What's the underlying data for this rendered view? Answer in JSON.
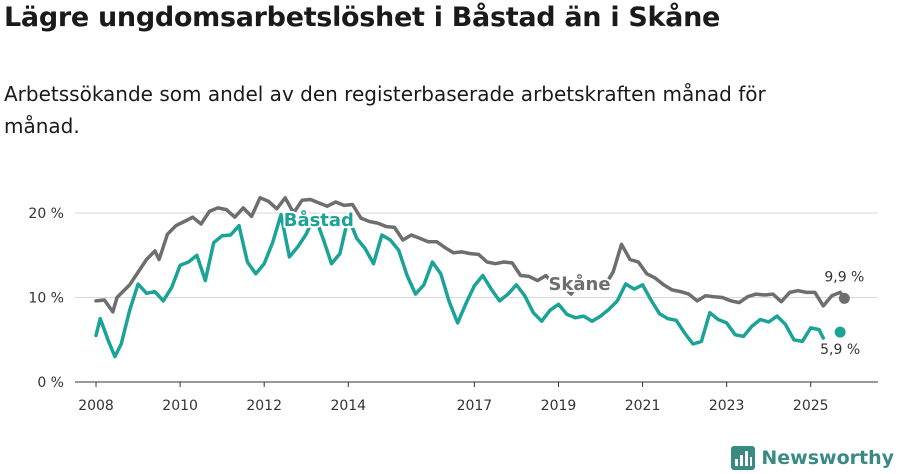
{
  "title": "Lägre ungdomsarbetslöshet i Båstad än i Skåne",
  "subtitle": "Arbetssökande som andel av den registerbaserade arbetskraften månad för månad.",
  "brand": {
    "name": "Newsworthy",
    "icon": "newsworthy-logo-icon"
  },
  "colors": {
    "bastad": "#1aa396",
    "skane": "#6e6e6e",
    "grid": "#d9d9d9",
    "axis": "#333333",
    "brand": "#3a8a84"
  },
  "chart_data": {
    "type": "line",
    "title": "Lägre ungdomsarbetslöshet i Båstad än i Skåne",
    "xlabel": "",
    "ylabel": "",
    "xlim": [
      2007.5,
      2026.6
    ],
    "ylim": [
      0,
      20
    ],
    "y_ticks": [
      0,
      10,
      20
    ],
    "y_tick_labels": [
      "0 %",
      "10 %",
      "20 %"
    ],
    "x_ticks": [
      2008,
      2010,
      2012,
      2014,
      2017,
      2019,
      2021,
      2023,
      2025
    ],
    "x_tick_labels": [
      "2008",
      "2010",
      "2012",
      "2014",
      "2017",
      "2019",
      "2021",
      "2023",
      "2025"
    ],
    "grid": true,
    "series": [
      {
        "name": "Skåne",
        "label": "Skåne",
        "color": "#6e6e6e",
        "end_label": "9,9 %",
        "points": [
          [
            2008.0,
            9.6
          ],
          [
            2008.2,
            9.7
          ],
          [
            2008.4,
            8.3
          ],
          [
            2008.5,
            10.0
          ],
          [
            2008.8,
            11.5
          ],
          [
            2009.0,
            13.0
          ],
          [
            2009.2,
            14.5
          ],
          [
            2009.4,
            15.5
          ],
          [
            2009.5,
            14.5
          ],
          [
            2009.7,
            17.5
          ],
          [
            2009.9,
            18.5
          ],
          [
            2010.1,
            19.0
          ],
          [
            2010.3,
            19.5
          ],
          [
            2010.5,
            18.7
          ],
          [
            2010.7,
            20.2
          ],
          [
            2010.9,
            20.6
          ],
          [
            2011.1,
            20.4
          ],
          [
            2011.3,
            19.5
          ],
          [
            2011.5,
            20.6
          ],
          [
            2011.7,
            19.6
          ],
          [
            2011.9,
            21.8
          ],
          [
            2012.1,
            21.4
          ],
          [
            2012.3,
            20.5
          ],
          [
            2012.5,
            21.8
          ],
          [
            2012.7,
            20.0
          ],
          [
            2012.9,
            21.5
          ],
          [
            2013.1,
            21.6
          ],
          [
            2013.3,
            21.2
          ],
          [
            2013.5,
            20.8
          ],
          [
            2013.7,
            21.3
          ],
          [
            2013.9,
            20.9
          ],
          [
            2014.1,
            21.0
          ],
          [
            2014.3,
            19.4
          ],
          [
            2014.5,
            19.0
          ],
          [
            2014.7,
            18.8
          ],
          [
            2014.9,
            18.4
          ],
          [
            2015.1,
            18.3
          ],
          [
            2015.3,
            16.8
          ],
          [
            2015.5,
            17.4
          ],
          [
            2015.7,
            17.0
          ],
          [
            2015.9,
            16.6
          ],
          [
            2016.1,
            16.6
          ],
          [
            2016.3,
            15.9
          ],
          [
            2016.5,
            15.3
          ],
          [
            2016.7,
            15.4
          ],
          [
            2016.9,
            15.2
          ],
          [
            2017.1,
            15.1
          ],
          [
            2017.3,
            14.2
          ],
          [
            2017.5,
            14.0
          ],
          [
            2017.7,
            14.2
          ],
          [
            2017.9,
            14.1
          ],
          [
            2018.1,
            12.6
          ],
          [
            2018.3,
            12.5
          ],
          [
            2018.5,
            12.0
          ],
          [
            2018.7,
            12.6
          ],
          [
            2018.9,
            11.5
          ],
          [
            2019.1,
            11.3
          ],
          [
            2019.3,
            10.4
          ],
          [
            2019.5,
            11.9
          ],
          [
            2019.7,
            11.5
          ],
          [
            2019.9,
            11.3
          ],
          [
            2020.1,
            11.4
          ],
          [
            2020.3,
            13.0
          ],
          [
            2020.5,
            16.3
          ],
          [
            2020.7,
            14.5
          ],
          [
            2020.9,
            14.2
          ],
          [
            2021.1,
            12.8
          ],
          [
            2021.3,
            12.3
          ],
          [
            2021.5,
            11.5
          ],
          [
            2021.7,
            10.9
          ],
          [
            2021.9,
            10.7
          ],
          [
            2022.1,
            10.4
          ],
          [
            2022.3,
            9.6
          ],
          [
            2022.5,
            10.2
          ],
          [
            2022.7,
            10.1
          ],
          [
            2022.9,
            10.0
          ],
          [
            2023.1,
            9.6
          ],
          [
            2023.3,
            9.4
          ],
          [
            2023.5,
            10.1
          ],
          [
            2023.7,
            10.4
          ],
          [
            2023.9,
            10.3
          ],
          [
            2024.1,
            10.4
          ],
          [
            2024.3,
            9.5
          ],
          [
            2024.5,
            10.6
          ],
          [
            2024.7,
            10.8
          ],
          [
            2024.9,
            10.6
          ],
          [
            2025.1,
            10.6
          ],
          [
            2025.3,
            9.0
          ],
          [
            2025.5,
            10.2
          ],
          [
            2025.7,
            10.6
          ],
          [
            2025.8,
            9.9
          ]
        ]
      },
      {
        "name": "Båstad",
        "label": "Båstad",
        "color": "#1aa396",
        "end_label": "5,9 %",
        "points": [
          [
            2008.0,
            5.5
          ],
          [
            2008.1,
            7.5
          ],
          [
            2008.3,
            4.8
          ],
          [
            2008.45,
            3.0
          ],
          [
            2008.6,
            4.5
          ],
          [
            2008.8,
            8.5
          ],
          [
            2009.0,
            11.6
          ],
          [
            2009.2,
            10.5
          ],
          [
            2009.4,
            10.7
          ],
          [
            2009.6,
            9.6
          ],
          [
            2009.8,
            11.2
          ],
          [
            2010.0,
            13.8
          ],
          [
            2010.2,
            14.2
          ],
          [
            2010.4,
            15.0
          ],
          [
            2010.6,
            12.0
          ],
          [
            2010.8,
            16.5
          ],
          [
            2011.0,
            17.3
          ],
          [
            2011.2,
            17.4
          ],
          [
            2011.4,
            18.5
          ],
          [
            2011.6,
            14.2
          ],
          [
            2011.8,
            12.8
          ],
          [
            2012.0,
            14.0
          ],
          [
            2012.2,
            16.5
          ],
          [
            2012.4,
            19.8
          ],
          [
            2012.6,
            14.8
          ],
          [
            2012.8,
            16.0
          ],
          [
            2013.0,
            17.5
          ],
          [
            2013.2,
            19.7
          ],
          [
            2013.4,
            17.0
          ],
          [
            2013.6,
            14.0
          ],
          [
            2013.8,
            15.2
          ],
          [
            2014.0,
            19.5
          ],
          [
            2014.2,
            17.0
          ],
          [
            2014.4,
            15.8
          ],
          [
            2014.6,
            14.0
          ],
          [
            2014.8,
            17.4
          ],
          [
            2015.0,
            16.8
          ],
          [
            2015.2,
            15.6
          ],
          [
            2015.4,
            12.6
          ],
          [
            2015.6,
            10.4
          ],
          [
            2015.8,
            11.5
          ],
          [
            2016.0,
            14.2
          ],
          [
            2016.2,
            12.8
          ],
          [
            2016.4,
            9.5
          ],
          [
            2016.6,
            7.0
          ],
          [
            2016.8,
            9.3
          ],
          [
            2017.0,
            11.4
          ],
          [
            2017.2,
            12.6
          ],
          [
            2017.4,
            11.0
          ],
          [
            2017.6,
            9.6
          ],
          [
            2017.8,
            10.4
          ],
          [
            2018.0,
            11.5
          ],
          [
            2018.2,
            10.2
          ],
          [
            2018.4,
            8.2
          ],
          [
            2018.6,
            7.2
          ],
          [
            2018.8,
            8.5
          ],
          [
            2019.0,
            9.2
          ],
          [
            2019.2,
            8.0
          ],
          [
            2019.4,
            7.6
          ],
          [
            2019.6,
            7.8
          ],
          [
            2019.8,
            7.2
          ],
          [
            2020.0,
            7.8
          ],
          [
            2020.2,
            8.6
          ],
          [
            2020.4,
            9.6
          ],
          [
            2020.6,
            11.6
          ],
          [
            2020.8,
            11.0
          ],
          [
            2021.0,
            11.5
          ],
          [
            2021.2,
            9.7
          ],
          [
            2021.4,
            8.1
          ],
          [
            2021.6,
            7.5
          ],
          [
            2021.8,
            7.3
          ],
          [
            2022.0,
            5.8
          ],
          [
            2022.2,
            4.5
          ],
          [
            2022.4,
            4.8
          ],
          [
            2022.6,
            8.2
          ],
          [
            2022.8,
            7.4
          ],
          [
            2023.0,
            7.0
          ],
          [
            2023.2,
            5.6
          ],
          [
            2023.4,
            5.4
          ],
          [
            2023.6,
            6.6
          ],
          [
            2023.8,
            7.4
          ],
          [
            2024.0,
            7.1
          ],
          [
            2024.2,
            7.8
          ],
          [
            2024.4,
            6.8
          ],
          [
            2024.6,
            5.0
          ],
          [
            2024.8,
            4.8
          ],
          [
            2025.0,
            6.4
          ],
          [
            2025.2,
            6.2
          ],
          [
            2025.3,
            5.2
          ],
          [
            2025.4,
            null
          ],
          [
            2025.7,
            5.9
          ]
        ]
      }
    ]
  }
}
